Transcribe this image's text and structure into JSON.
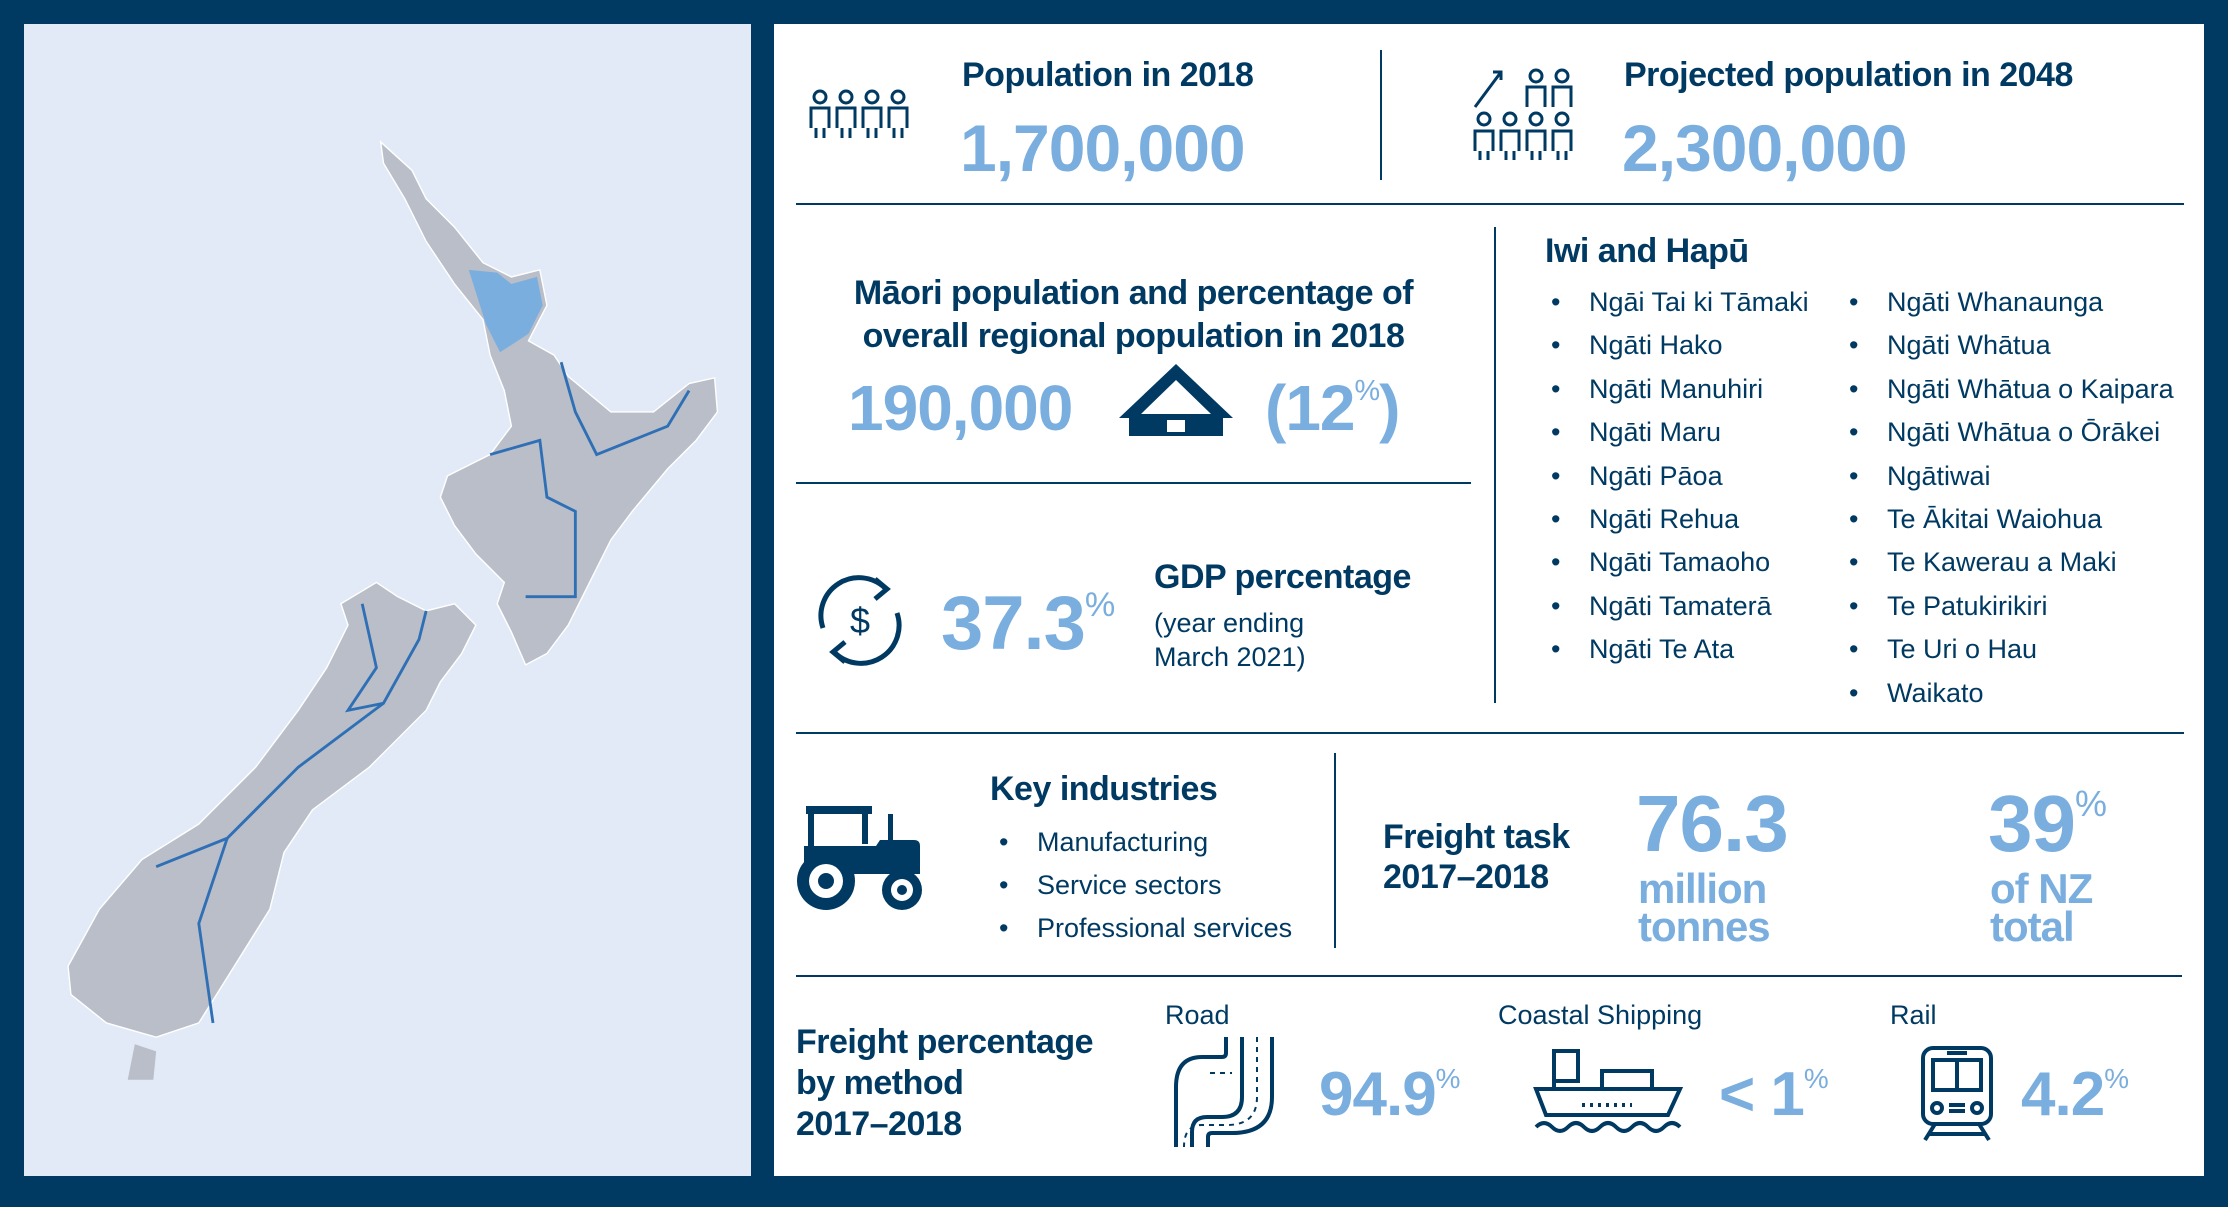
{
  "colors": {
    "navy": "#003a62",
    "accent": "#7aaede",
    "map_bg": "#e1eaf6",
    "land": "#b9bec8",
    "region": "#7aaede"
  },
  "population": {
    "label": "Population in 2018",
    "value": "1,700,000",
    "icon": "people-icon"
  },
  "projected": {
    "label": "Projected population in 2048",
    "value": "2,300,000",
    "icon": "people-growth-icon"
  },
  "maori": {
    "heading_line1": "Māori population and percentage of",
    "heading_line2": "overall regional population in 2018",
    "value": "190,000",
    "percent": "12",
    "pct_sign": "%",
    "icon": "marae-house-icon"
  },
  "gdp": {
    "value": "37.3",
    "pct_sign": "%",
    "label": "GDP percentage",
    "note_line1": "(year ending",
    "note_line2": "March 2021)",
    "icon": "dollar-cycle-icon"
  },
  "iwi": {
    "heading": "Iwi and Hapū",
    "col1": [
      "Ngāi Tai ki Tāmaki",
      "Ngāti Hako",
      "Ngāti Manuhiri",
      "Ngāti Maru",
      "Ngāti Pāoa",
      "Ngāti Rehua",
      "Ngāti Tamaoho",
      "Ngāti Tamaterā",
      "Ngāti Te Ata"
    ],
    "col2": [
      "Ngāti Whanaunga",
      "Ngāti Whātua",
      "Ngāti Whātua o Kaipara",
      "Ngāti Whātua o Ōrākei",
      "Ngātiwai",
      "Te Ākitai Waiohua",
      "Te Kawerau a Maki",
      "Te Patukirikiri",
      "Te Uri o Hau",
      "Waikato"
    ],
    "bullet": "•"
  },
  "industries": {
    "heading": "Key industries",
    "items": [
      "Manufacturing",
      "Service sectors",
      "Professional services"
    ],
    "icon": "tractor-icon"
  },
  "freight_task": {
    "label_line1": "Freight task",
    "label_line2": "2017–2018",
    "value": "76.3",
    "unit_line1": "million",
    "unit_line2": "tonnes",
    "share": "39",
    "share_sign": "%",
    "share_line1": "of NZ",
    "share_line2": "total"
  },
  "freight_method": {
    "label_line1": "Freight percentage",
    "label_line2": "by method",
    "label_line3": "2017–2018",
    "road": {
      "label": "Road",
      "value": "94.9",
      "sign": "%",
      "icon": "road-icon"
    },
    "coastal": {
      "label": "Coastal Shipping",
      "value": "< 1",
      "sign": "%",
      "icon": "ship-icon"
    },
    "rail": {
      "label": "Rail",
      "value": "4.2",
      "sign": "%",
      "icon": "train-icon"
    }
  }
}
